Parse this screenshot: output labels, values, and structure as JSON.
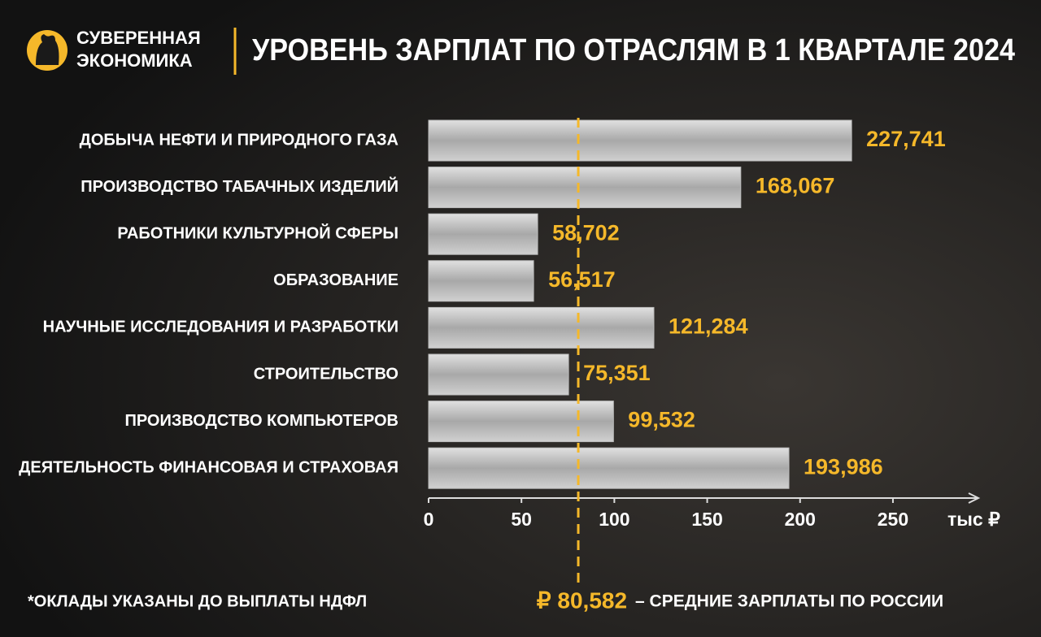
{
  "brand": [
    "СУВЕРЕННАЯ",
    "ЭКОНОМИКА"
  ],
  "footnote": "*ОКЛАДЫ УКАЗАНЫ ДО ВЫПЛАТЫ НДФЛ",
  "chart_data": {
    "type": "bar",
    "orientation": "horizontal",
    "title": "УРОВЕНЬ ЗАРПЛАТ ПО ОТРАСЛЯМ В 1 КВАРТАЛЕ 2024",
    "categories": [
      "ДОБЫЧА НЕФТИ И ПРИРОДНОГО ГАЗА",
      "ПРОИЗВОДСТВО ТАБАЧНЫХ ИЗДЕЛИЙ",
      "РАБОТНИКИ КУЛЬТУРНОЙ СФЕРЫ",
      "ОБРАЗОВАНИЕ",
      "НАУЧНЫЕ ИССЛЕДОВАНИЯ И РАЗРАБОТКИ",
      "СТРОИТЕЛЬСТВО",
      "ПРОИЗВОДСТВО КОМПЬЮТЕРОВ",
      "ДЕЯТЕЛЬНОСТЬ ФИНАНСОВАЯ И СТРАХОВАЯ"
    ],
    "values": [
      227.741,
      168.067,
      58.702,
      56.517,
      121.284,
      75.351,
      99.532,
      193.986
    ],
    "value_labels": [
      "227,741",
      "168,067",
      "58,702",
      "56,517",
      "121,284",
      "75,351",
      "99,532",
      "193,986"
    ],
    "color": "#bdbdbd",
    "label_color": "#f5b82a",
    "xlim": [
      0,
      296
    ],
    "xticks": [
      0,
      50,
      100,
      150,
      200,
      250
    ],
    "x_label": "тыс ₽",
    "reference_line": {
      "value": 80.582,
      "label": "₽ 80,582",
      "text": "– СРЕДНИЕ ЗАРПЛАТЫ ПО РОССИИ"
    }
  }
}
